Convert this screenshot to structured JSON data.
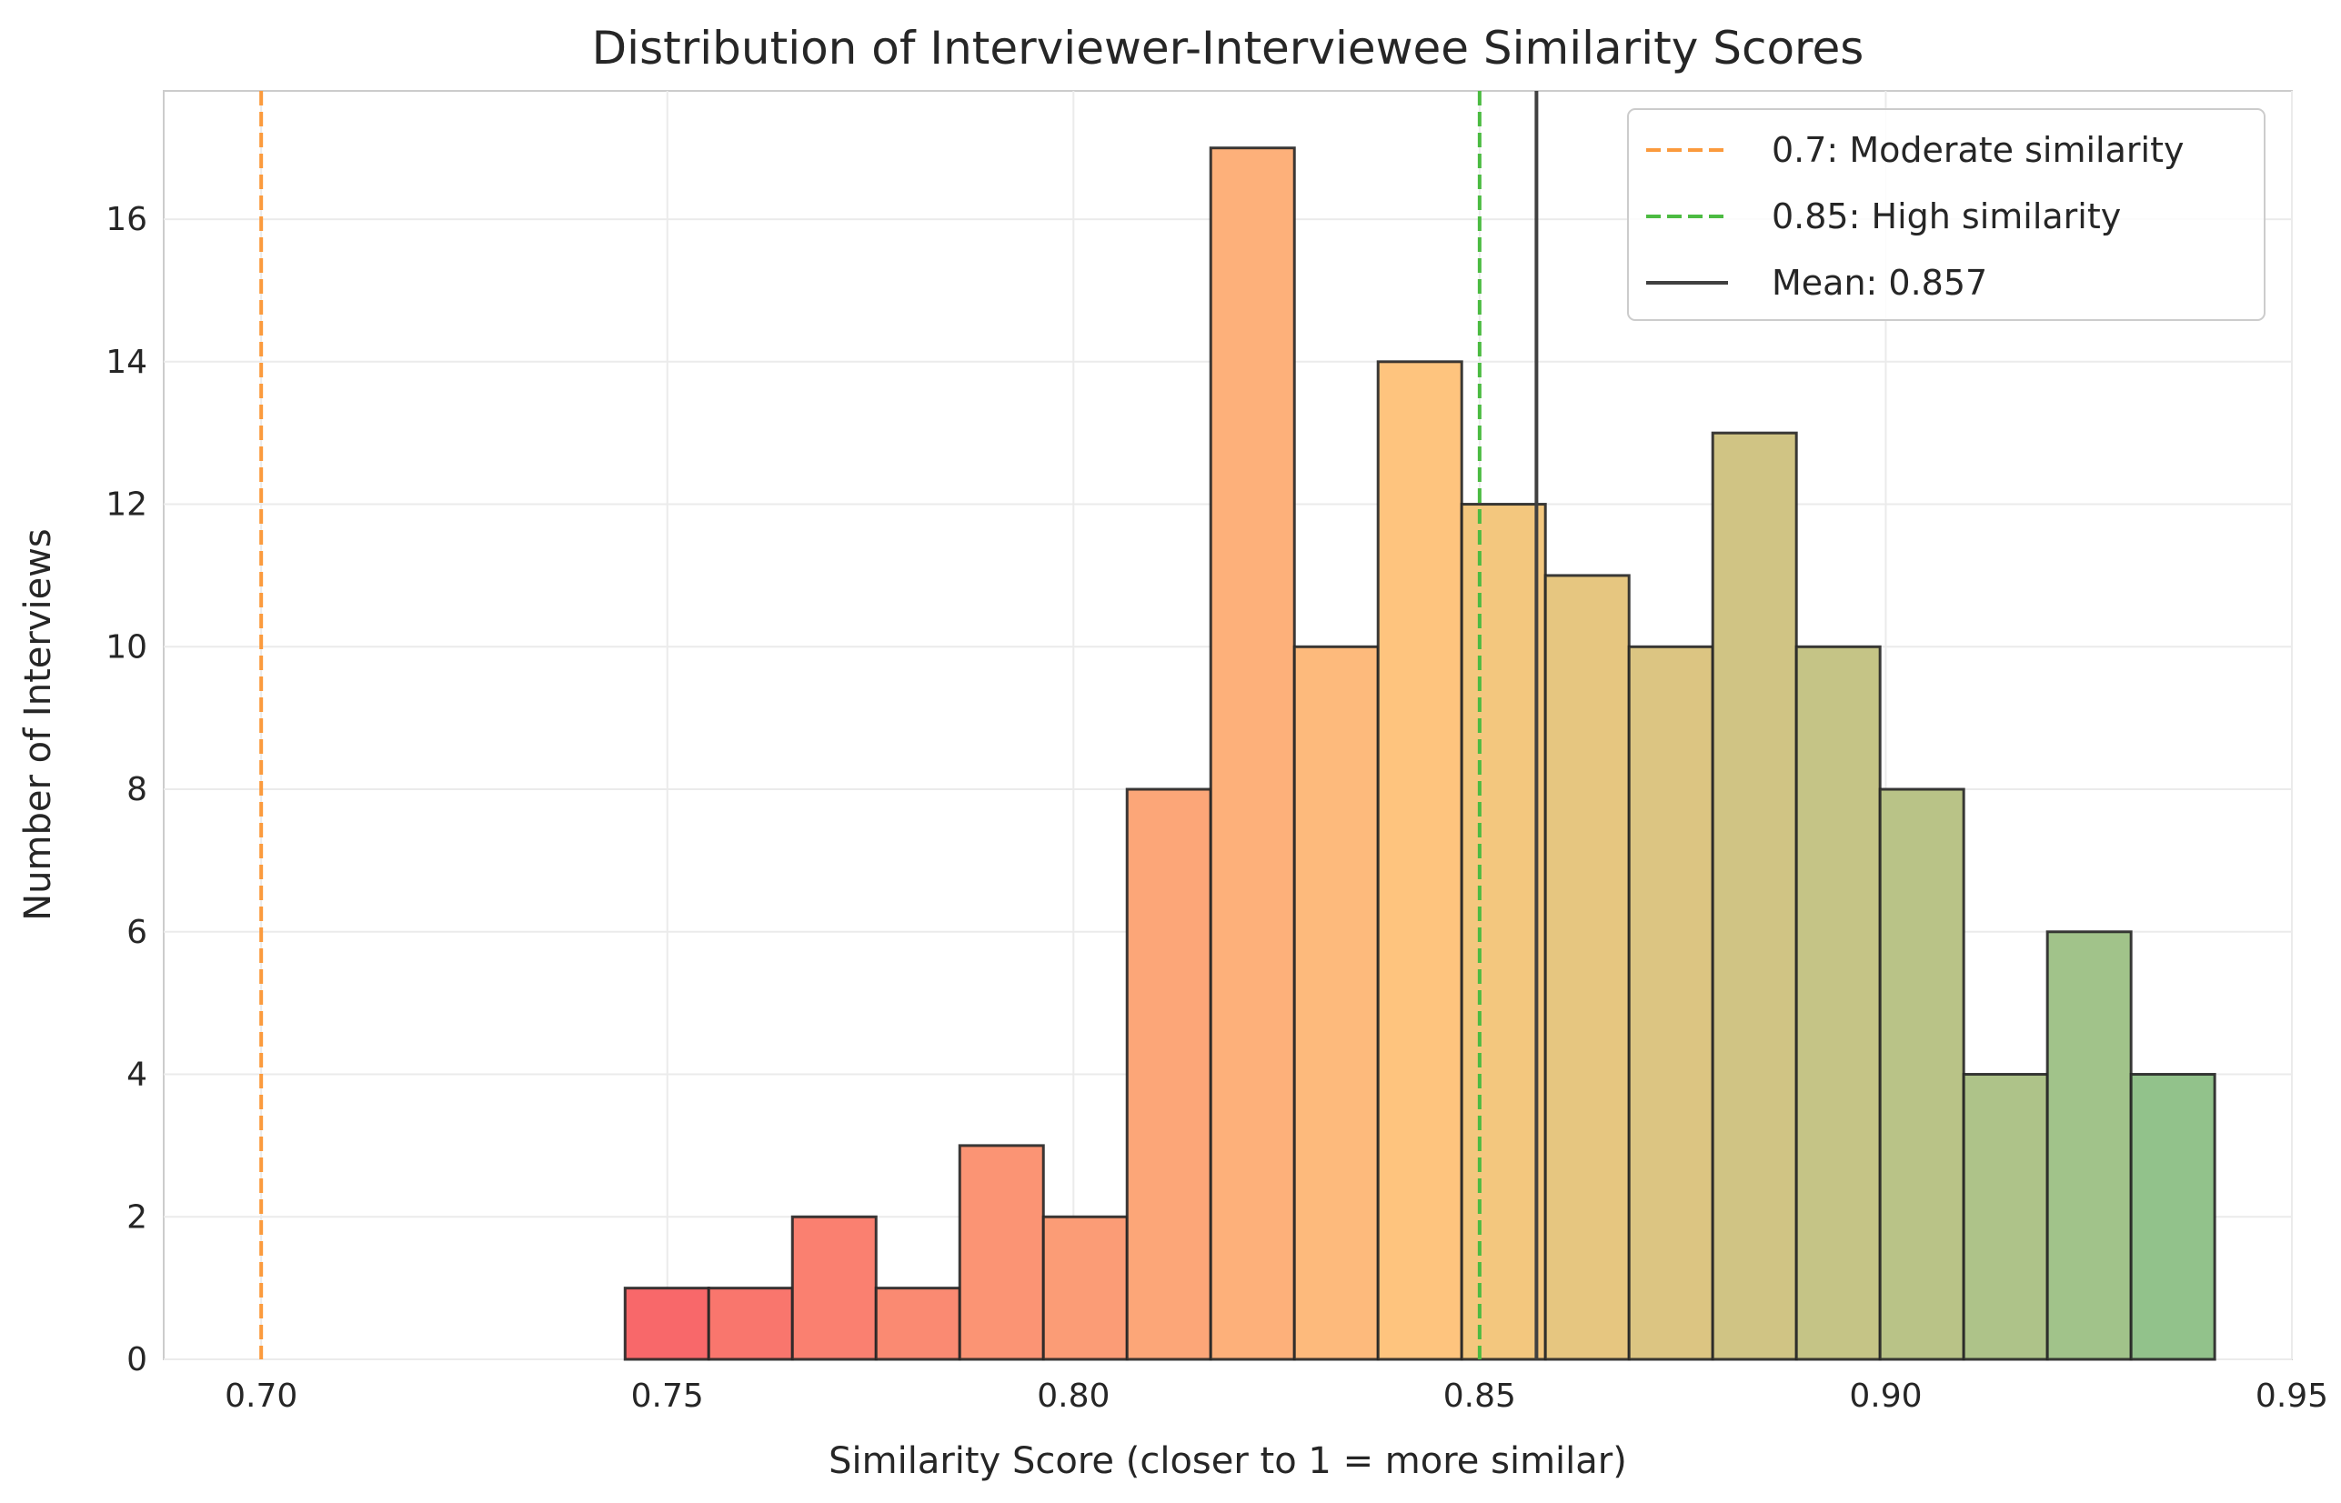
{
  "chart_data": {
    "type": "bar",
    "title": "Distribution of Interviewer-Interviewee Similarity Scores",
    "xlabel": "Similarity Score (closer to 1 = more similar)",
    "ylabel": "Number of Interviews",
    "xlim": [
      0.688,
      0.95
    ],
    "ylim": [
      0,
      17.8
    ],
    "grid": true,
    "legend_position": "top-right",
    "x_ticks": [
      {
        "value": 0.7,
        "label": "0.70"
      },
      {
        "value": 0.75,
        "label": "0.75"
      },
      {
        "value": 0.8,
        "label": "0.80"
      },
      {
        "value": 0.85,
        "label": "0.85"
      },
      {
        "value": 0.9,
        "label": "0.90"
      },
      {
        "value": 0.95,
        "label": "0.95"
      }
    ],
    "y_ticks": [
      {
        "value": 0,
        "label": "0"
      },
      {
        "value": 2,
        "label": "2"
      },
      {
        "value": 4,
        "label": "4"
      },
      {
        "value": 6,
        "label": "6"
      },
      {
        "value": 8,
        "label": "8"
      },
      {
        "value": 10,
        "label": "10"
      },
      {
        "value": 12,
        "label": "12"
      },
      {
        "value": 14,
        "label": "14"
      },
      {
        "value": 16,
        "label": "16"
      }
    ],
    "bins": [
      {
        "x0": 0.7448,
        "x1": 0.7551,
        "count": 1,
        "color": "#f8686a"
      },
      {
        "x0": 0.7551,
        "x1": 0.7654,
        "count": 1,
        "color": "#f9766d"
      },
      {
        "x0": 0.7654,
        "x1": 0.7757,
        "count": 2,
        "color": "#fa8070"
      },
      {
        "x0": 0.7757,
        "x1": 0.786,
        "count": 1,
        "color": "#fa8a72"
      },
      {
        "x0": 0.786,
        "x1": 0.7963,
        "count": 3,
        "color": "#fb9474"
      },
      {
        "x0": 0.7963,
        "x1": 0.8066,
        "count": 2,
        "color": "#fb9c76"
      },
      {
        "x0": 0.8066,
        "x1": 0.8169,
        "count": 8,
        "color": "#fca678"
      },
      {
        "x0": 0.8169,
        "x1": 0.8272,
        "count": 17,
        "color": "#fdb07a"
      },
      {
        "x0": 0.8272,
        "x1": 0.8375,
        "count": 10,
        "color": "#fdba7c"
      },
      {
        "x0": 0.8375,
        "x1": 0.8478,
        "count": 14,
        "color": "#fec47e"
      },
      {
        "x0": 0.8478,
        "x1": 0.8581,
        "count": 12,
        "color": "#f3c77e"
      },
      {
        "x0": 0.8581,
        "x1": 0.8684,
        "count": 11,
        "color": "#e6c680"
      },
      {
        "x0": 0.8684,
        "x1": 0.8787,
        "count": 10,
        "color": "#dcc582"
      },
      {
        "x0": 0.8787,
        "x1": 0.889,
        "count": 13,
        "color": "#d0c484"
      },
      {
        "x0": 0.889,
        "x1": 0.8993,
        "count": 10,
        "color": "#c5c486"
      },
      {
        "x0": 0.8993,
        "x1": 0.9096,
        "count": 8,
        "color": "#b9c387"
      },
      {
        "x0": 0.9096,
        "x1": 0.9199,
        "count": 4,
        "color": "#aec389"
      },
      {
        "x0": 0.9199,
        "x1": 0.9302,
        "count": 6,
        "color": "#a1c38a"
      },
      {
        "x0": 0.9302,
        "x1": 0.9405,
        "count": 4,
        "color": "#92c28b"
      }
    ],
    "reference_lines": [
      {
        "value": 0.7,
        "label": "0.7: Moderate similarity",
        "color": "#fb9a3d",
        "style": "dashed"
      },
      {
        "value": 0.85,
        "label": "0.85: High similarity",
        "color": "#4cbb42",
        "style": "dashed"
      },
      {
        "value": 0.857,
        "label": "Mean: 0.857",
        "color": "#404040",
        "style": "solid"
      }
    ]
  }
}
